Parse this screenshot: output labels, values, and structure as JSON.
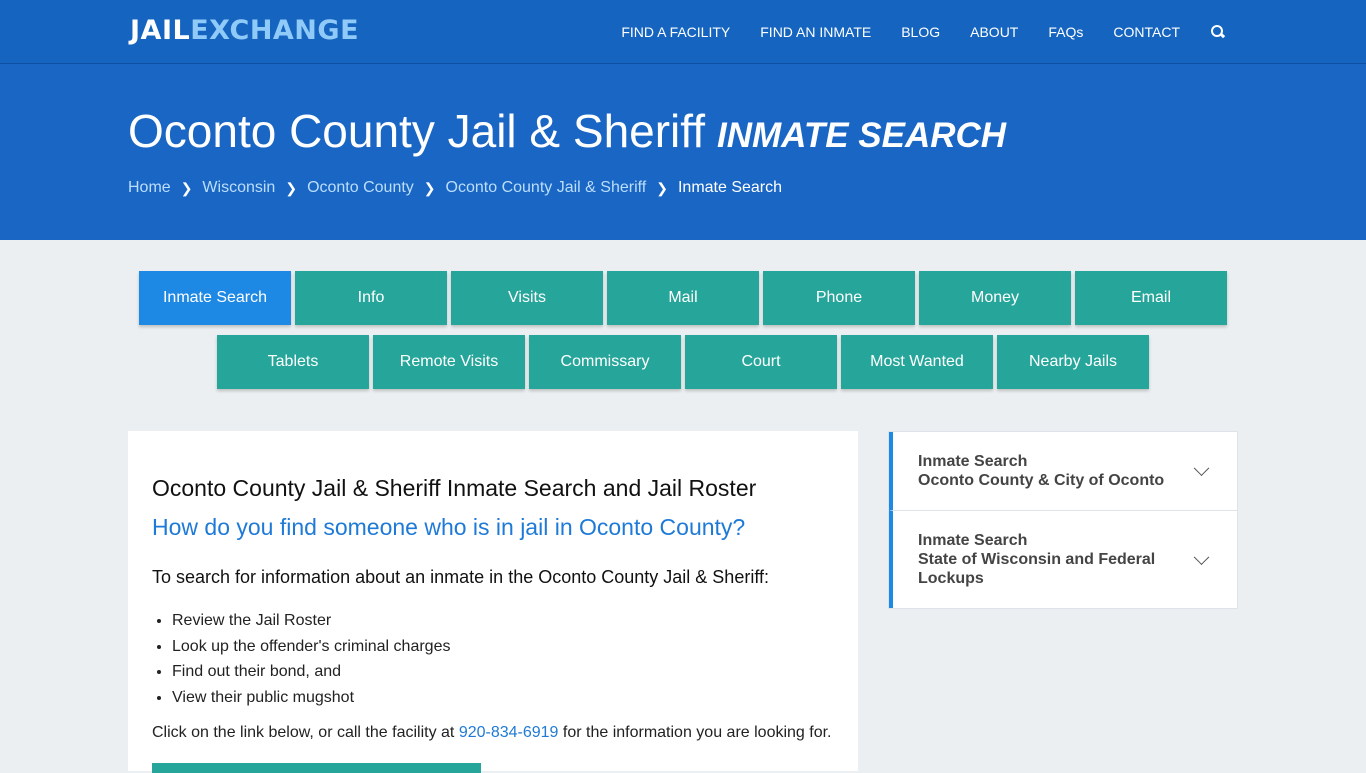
{
  "logo": {
    "part1": "JAIL",
    "part2": "EXCHANGE"
  },
  "nav": [
    "FIND A FACILITY",
    "FIND AN INMATE",
    "BLOG",
    "ABOUT",
    "FAQs",
    "CONTACT"
  ],
  "hero": {
    "title": "Oconto County Jail & Sheriff",
    "subtitle": "INMATE SEARCH"
  },
  "breadcrumb": [
    "Home",
    "Wisconsin",
    "Oconto County",
    "Oconto County Jail & Sheriff",
    "Inmate Search"
  ],
  "tabs_row1": [
    "Inmate Search",
    "Info",
    "Visits",
    "Mail",
    "Phone",
    "Money",
    "Email"
  ],
  "tabs_row2": [
    "Tablets",
    "Remote Visits",
    "Commissary",
    "Court",
    "Most Wanted",
    "Nearby Jails"
  ],
  "main": {
    "heading": "Oconto County Jail & Sheriff Inmate Search and Jail Roster",
    "question": "How do you find someone who is in jail in Oconto County?",
    "intro": "To search for information about an inmate in the Oconto County Jail & Sheriff:",
    "bullets": [
      "Review the Jail Roster",
      "Look up the offender's criminal charges",
      "Find out their bond, and",
      "View their public mugshot"
    ],
    "call_pre": "Click on the link below, or call the facility at ",
    "phone": "920-834-6919",
    "call_post": " for the information you are looking for."
  },
  "sidebar": [
    {
      "title": "Inmate Search",
      "subtitle": "Oconto County & City of Oconto"
    },
    {
      "title": "Inmate Search",
      "subtitle": "State of Wisconsin and Federal Lockups"
    }
  ]
}
